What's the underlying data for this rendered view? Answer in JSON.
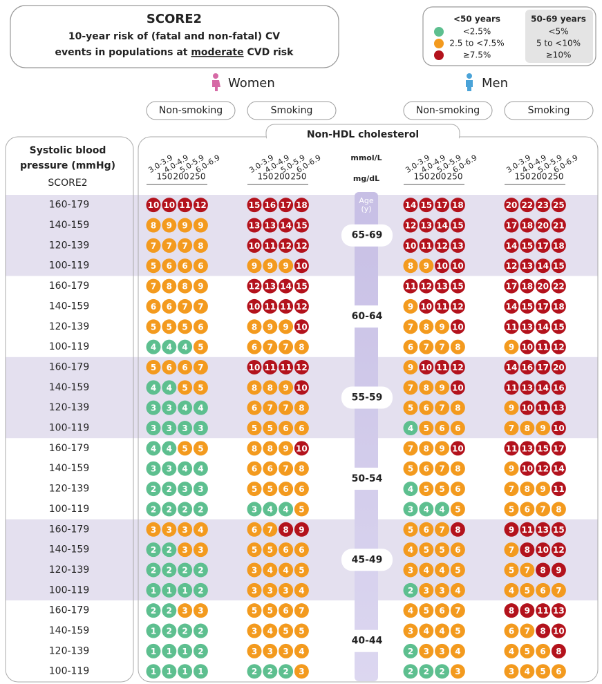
{
  "header": {
    "title": "SCORE2",
    "line1": "10-year risk of (fatal and non-fatal) CV",
    "line2_pre": "events in populations at",
    "line2_em": "moderate",
    "line2_post": "CVD risk"
  },
  "legend": {
    "columns": [
      "<50 years",
      "50-69 years"
    ],
    "rows": [
      {
        "color": "#5dbf8f",
        "labels": [
          "<2.5%",
          "<5%"
        ]
      },
      {
        "color": "#f39a1e",
        "labels": [
          "2.5 to <7.5%",
          "5 to <10%"
        ]
      },
      {
        "color": "#b3121c",
        "labels": [
          "≥7.5%",
          "≥10%"
        ]
      }
    ]
  },
  "sexes": [
    {
      "label": "Women",
      "color": "#d66aa6",
      "columns": [
        "Non-smoking",
        "Smoking"
      ]
    },
    {
      "label": "Men",
      "color": "#4aa3d8",
      "columns": [
        "Non-smoking",
        "Smoking"
      ]
    }
  ],
  "cholesterol_header": "Non-HDL cholesterol",
  "mmol_unit": "mmol/L",
  "mgdl_unit": "mg/dL",
  "mmol_bins": [
    "3.0-3.9",
    "4.0-4.9",
    "5.0-5.9",
    "6.0-6.9"
  ],
  "mgdl_ticks": [
    "150",
    "200",
    "250"
  ],
  "row_header": [
    "Systolic blood",
    "pressure (mmHg)"
  ],
  "score_label": "SCORE2",
  "age_header": [
    "Age",
    "(y)"
  ],
  "age_groups": [
    {
      "age": "65-69",
      "rows": [
        {
          "sbp": "160-179",
          "values": [
            [
              10,
              10,
              11,
              12
            ],
            [
              15,
              16,
              17,
              18
            ],
            [
              14,
              15,
              17,
              18
            ],
            [
              20,
              22,
              23,
              25
            ]
          ]
        },
        {
          "sbp": "140-159",
          "values": [
            [
              8,
              9,
              9,
              9
            ],
            [
              13,
              13,
              14,
              15
            ],
            [
              12,
              13,
              14,
              15
            ],
            [
              17,
              18,
              20,
              21
            ]
          ]
        },
        {
          "sbp": "120-139",
          "values": [
            [
              7,
              7,
              7,
              8
            ],
            [
              10,
              11,
              12,
              12
            ],
            [
              10,
              11,
              12,
              13
            ],
            [
              14,
              15,
              17,
              18
            ]
          ]
        },
        {
          "sbp": "100-119",
          "values": [
            [
              5,
              6,
              6,
              6
            ],
            [
              9,
              9,
              9,
              10
            ],
            [
              8,
              9,
              10,
              10
            ],
            [
              12,
              13,
              14,
              15
            ]
          ]
        }
      ]
    },
    {
      "age": "60-64",
      "rows": [
        {
          "sbp": "160-179",
          "values": [
            [
              7,
              8,
              8,
              9
            ],
            [
              12,
              13,
              14,
              15
            ],
            [
              11,
              12,
              13,
              15
            ],
            [
              17,
              18,
              20,
              22
            ]
          ]
        },
        {
          "sbp": "140-159",
          "values": [
            [
              6,
              6,
              7,
              7
            ],
            [
              10,
              11,
              11,
              12
            ],
            [
              9,
              10,
              11,
              12
            ],
            [
              14,
              15,
              17,
              18
            ]
          ]
        },
        {
          "sbp": "120-139",
          "values": [
            [
              5,
              5,
              5,
              6
            ],
            [
              8,
              9,
              9,
              10
            ],
            [
              7,
              8,
              9,
              10
            ],
            [
              11,
              13,
              14,
              15
            ]
          ]
        },
        {
          "sbp": "100-119",
          "values": [
            [
              4,
              4,
              4,
              5
            ],
            [
              6,
              7,
              7,
              8
            ],
            [
              6,
              7,
              7,
              8
            ],
            [
              9,
              10,
              11,
              12
            ]
          ]
        }
      ]
    },
    {
      "age": "55-59",
      "rows": [
        {
          "sbp": "160-179",
          "values": [
            [
              5,
              6,
              6,
              7
            ],
            [
              10,
              11,
              11,
              12
            ],
            [
              9,
              10,
              11,
              12
            ],
            [
              14,
              16,
              17,
              20
            ]
          ]
        },
        {
          "sbp": "140-159",
          "values": [
            [
              4,
              4,
              5,
              5
            ],
            [
              8,
              8,
              9,
              10
            ],
            [
              7,
              8,
              9,
              10
            ],
            [
              11,
              13,
              14,
              16
            ]
          ]
        },
        {
          "sbp": "120-139",
          "values": [
            [
              3,
              3,
              4,
              4
            ],
            [
              6,
              7,
              7,
              8
            ],
            [
              5,
              6,
              7,
              8
            ],
            [
              9,
              10,
              11,
              13
            ]
          ]
        },
        {
          "sbp": "100-119",
          "values": [
            [
              3,
              3,
              3,
              3
            ],
            [
              5,
              5,
              6,
              6
            ],
            [
              4,
              5,
              6,
              6
            ],
            [
              7,
              8,
              9,
              10
            ]
          ]
        }
      ]
    },
    {
      "age": "50-54",
      "rows": [
        {
          "sbp": "160-179",
          "values": [
            [
              4,
              4,
              5,
              5
            ],
            [
              8,
              8,
              9,
              10
            ],
            [
              7,
              8,
              9,
              10
            ],
            [
              11,
              13,
              15,
              17
            ]
          ]
        },
        {
          "sbp": "140-159",
          "values": [
            [
              3,
              3,
              4,
              4
            ],
            [
              6,
              6,
              7,
              8
            ],
            [
              5,
              6,
              7,
              8
            ],
            [
              9,
              10,
              12,
              14
            ]
          ]
        },
        {
          "sbp": "120-139",
          "values": [
            [
              2,
              2,
              3,
              3
            ],
            [
              5,
              5,
              6,
              6
            ],
            [
              4,
              5,
              5,
              6
            ],
            [
              7,
              8,
              9,
              11
            ]
          ]
        },
        {
          "sbp": "100-119",
          "values": [
            [
              2,
              2,
              2,
              2
            ],
            [
              3,
              4,
              4,
              5
            ],
            [
              3,
              4,
              4,
              5
            ],
            [
              5,
              6,
              7,
              8
            ]
          ]
        }
      ]
    },
    {
      "age": "45-49",
      "rows": [
        {
          "sbp": "160-179",
          "values": [
            [
              3,
              3,
              3,
              4
            ],
            [
              6,
              7,
              8,
              9
            ],
            [
              5,
              6,
              7,
              8
            ],
            [
              9,
              11,
              13,
              15
            ]
          ]
        },
        {
          "sbp": "140-159",
          "values": [
            [
              2,
              2,
              3,
              3
            ],
            [
              5,
              5,
              6,
              6
            ],
            [
              4,
              5,
              5,
              6
            ],
            [
              7,
              8,
              10,
              12
            ]
          ]
        },
        {
          "sbp": "120-139",
          "values": [
            [
              2,
              2,
              2,
              2
            ],
            [
              3,
              4,
              4,
              5
            ],
            [
              3,
              4,
              4,
              5
            ],
            [
              5,
              7,
              8,
              9
            ]
          ]
        },
        {
          "sbp": "100-119",
          "values": [
            [
              1,
              1,
              1,
              2
            ],
            [
              3,
              3,
              3,
              4
            ],
            [
              2,
              3,
              3,
              4
            ],
            [
              4,
              5,
              6,
              7
            ]
          ]
        }
      ]
    },
    {
      "age": "40-44",
      "rows": [
        {
          "sbp": "160-179",
          "values": [
            [
              2,
              2,
              3,
              3
            ],
            [
              5,
              5,
              6,
              7
            ],
            [
              4,
              5,
              6,
              7
            ],
            [
              8,
              9,
              11,
              13
            ]
          ]
        },
        {
          "sbp": "140-159",
          "values": [
            [
              1,
              2,
              2,
              2
            ],
            [
              3,
              4,
              5,
              5
            ],
            [
              3,
              4,
              4,
              5
            ],
            [
              6,
              7,
              8,
              10
            ]
          ]
        },
        {
          "sbp": "120-139",
          "values": [
            [
              1,
              1,
              1,
              2
            ],
            [
              3,
              3,
              3,
              4
            ],
            [
              2,
              3,
              3,
              4
            ],
            [
              4,
              5,
              6,
              8
            ]
          ]
        },
        {
          "sbp": "100-119",
          "values": [
            [
              1,
              1,
              1,
              1
            ],
            [
              2,
              2,
              2,
              3
            ],
            [
              2,
              2,
              2,
              3
            ],
            [
              3,
              4,
              5,
              6
            ]
          ]
        }
      ]
    }
  ]
}
